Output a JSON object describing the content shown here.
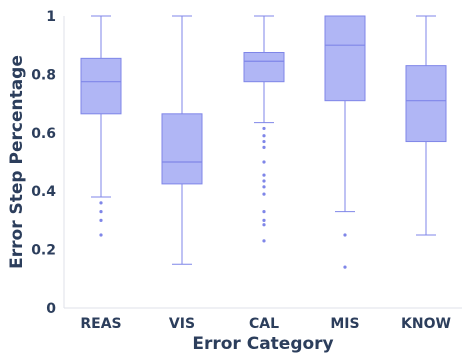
{
  "chart_data": {
    "type": "box",
    "xlabel": "Error Category",
    "ylabel": "Error Step Percentage",
    "ylim": [
      0,
      1
    ],
    "yticks": [
      "0",
      "0.2",
      "0.4",
      "0.6",
      "0.8",
      "1"
    ],
    "grid": false,
    "colors": {
      "box_fill": "#b0b6f5",
      "box_stroke": "#7f86e8",
      "text": "#2c3e5c"
    },
    "categories": [
      "REAS",
      "VIS",
      "CAL",
      "MIS",
      "KNOW"
    ],
    "boxes": [
      {
        "category": "REAS",
        "min": 0.38,
        "q1": 0.665,
        "median": 0.775,
        "q3": 0.855,
        "max": 1.0,
        "outliers": [
          0.36,
          0.33,
          0.3,
          0.25
        ]
      },
      {
        "category": "VIS",
        "min": 0.15,
        "q1": 0.425,
        "median": 0.5,
        "q3": 0.665,
        "max": 1.0,
        "outliers": []
      },
      {
        "category": "CAL",
        "min": 0.635,
        "q1": 0.775,
        "median": 0.845,
        "q3": 0.875,
        "max": 1.0,
        "outliers": [
          0.615,
          0.59,
          0.57,
          0.55,
          0.5,
          0.455,
          0.435,
          0.415,
          0.39,
          0.33,
          0.3,
          0.285,
          0.23
        ]
      },
      {
        "category": "MIS",
        "min": 0.33,
        "q1": 0.71,
        "median": 0.9,
        "q3": 1.0,
        "max": 1.0,
        "outliers": [
          0.25,
          0.14
        ]
      },
      {
        "category": "KNOW",
        "min": 0.25,
        "q1": 0.57,
        "median": 0.71,
        "q3": 0.83,
        "max": 1.0,
        "outliers": []
      }
    ]
  }
}
